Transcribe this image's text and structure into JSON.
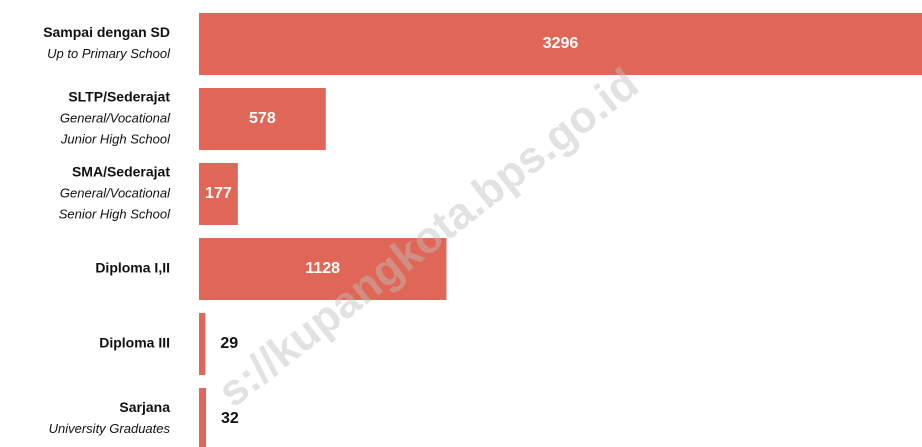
{
  "chart_data": {
    "type": "bar",
    "orientation": "horizontal",
    "categories": [
      "Sampai dengan SD",
      "SLTP/Sederajat",
      "SMA/Sederajat",
      "Diploma I,II",
      "Diploma III",
      "Sarjana"
    ],
    "category_subtitles": [
      [
        "Up to Primary School"
      ],
      [
        "General/Vocational",
        "Junior High School"
      ],
      [
        "General/Vocational",
        "Senior High School"
      ],
      null,
      null,
      [
        "University Graduates"
      ]
    ],
    "values": [
      3296,
      578,
      177,
      1128,
      29,
      32
    ],
    "color": "#e06757",
    "watermark": "s://kupangkota.bps.go.id"
  }
}
